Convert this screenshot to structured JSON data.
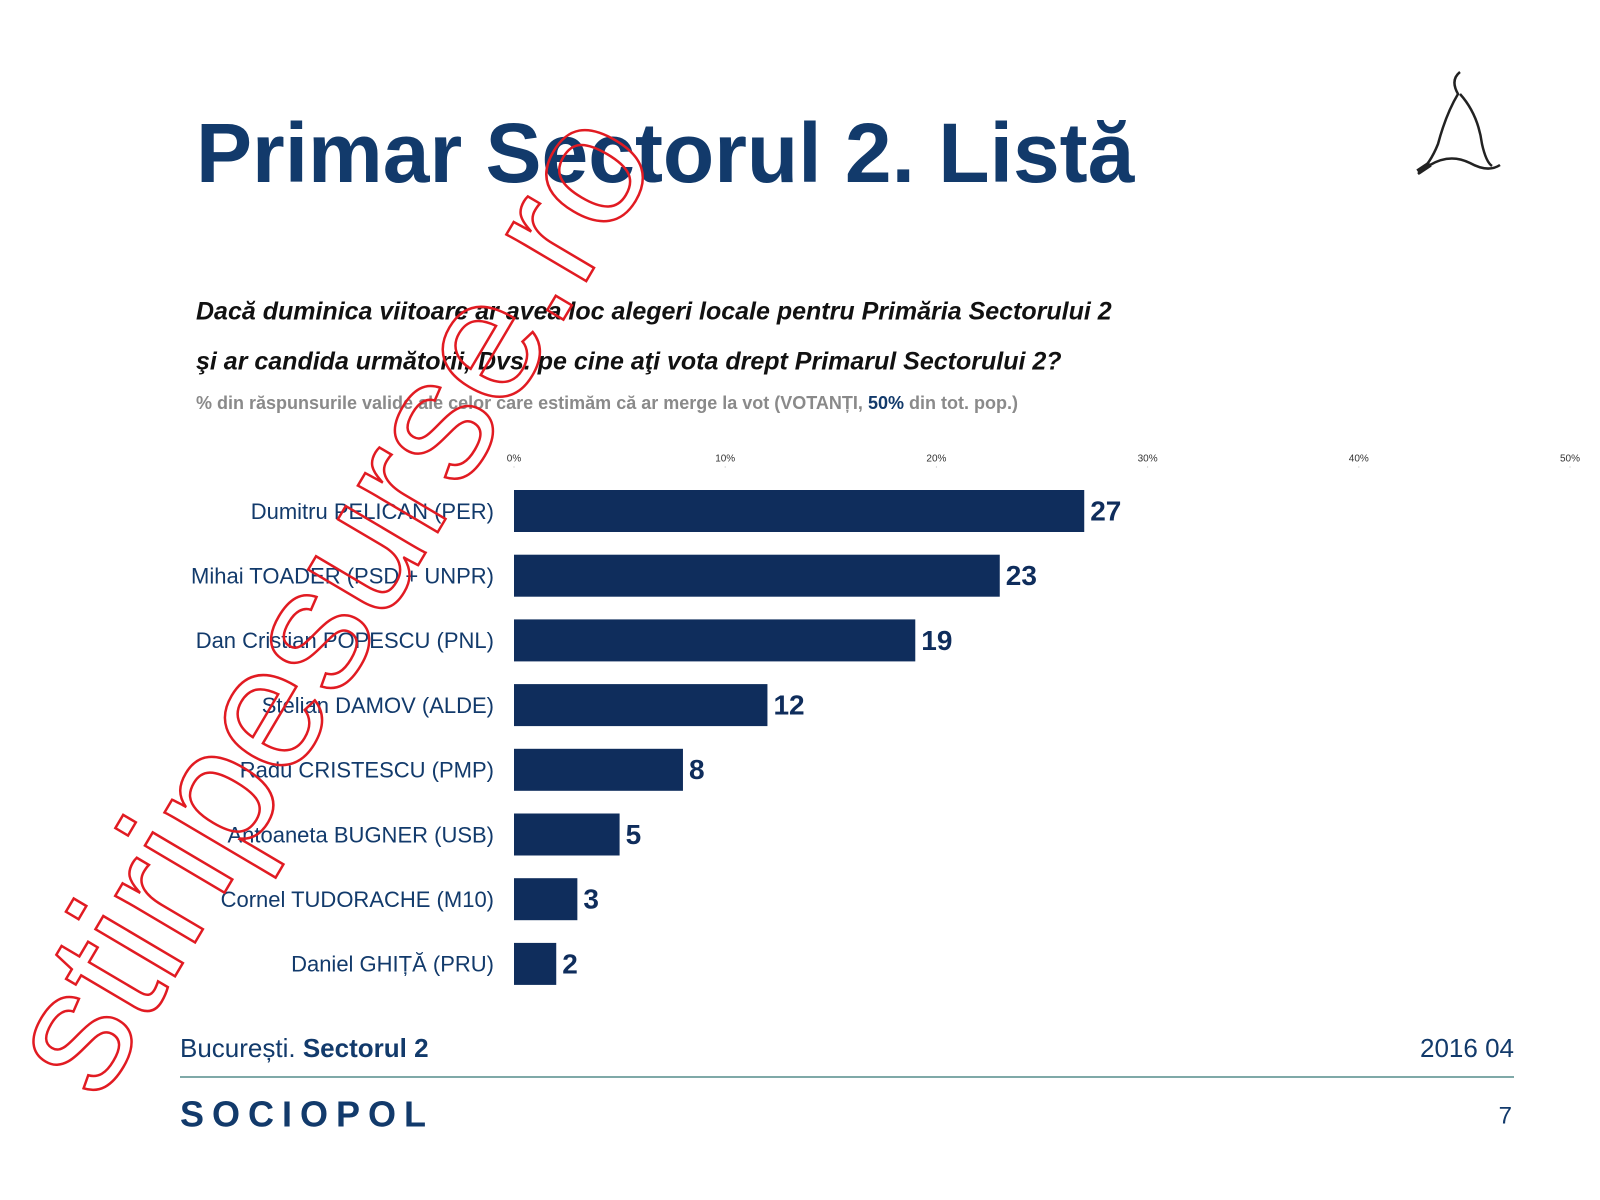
{
  "header": {
    "title": "Primar Sectorul 2. Listă",
    "question": [
      "Dacă duminica viitoare ar avea loc alegeri locale pentru Primăria Sectorului 2",
      "şi ar candida următorii, Dvs. pe cine aţi vota drept Primarul Sectorului 2?"
    ],
    "subtitle": [
      "% din răspunsurile valide ale celor care estimăm că ar merge la vot (VOTANȚI,",
      "50%",
      "din tot. pop.)"
    ]
  },
  "chart_data": {
    "type": "bar",
    "orientation": "horizontal",
    "categories": [
      "Dumitru PELICAN (PER)",
      "Mihai TOADER (PSD + UNPR)",
      "Dan Cristian POPESCU (PNL)",
      "Stelian DAMOV (ALDE)",
      "Radu CRISTESCU (PMP)",
      "Antoaneta BUGNER (USB)",
      "Cornel TUDORACHE (M10)",
      "Daniel GHIȚĂ (PRU)"
    ],
    "values": [
      27,
      23,
      19,
      12,
      8,
      5,
      3,
      2
    ],
    "color": "#0f2d5c",
    "xlim": [
      0,
      50
    ],
    "xticks": [
      {
        "value": 0,
        "label": "0%"
      },
      {
        "value": 10,
        "label": "10%"
      },
      {
        "value": 20,
        "label": "20%"
      },
      {
        "value": 30,
        "label": "30%"
      },
      {
        "value": 40,
        "label": "40%"
      },
      {
        "value": 50,
        "label": "50%"
      }
    ]
  },
  "footer": {
    "location": "București.",
    "sector": "Sectorul 2",
    "date": "2016 04",
    "brand": "SOCIOPOL",
    "page": "7"
  },
  "watermark": "stiripesurse.ro"
}
